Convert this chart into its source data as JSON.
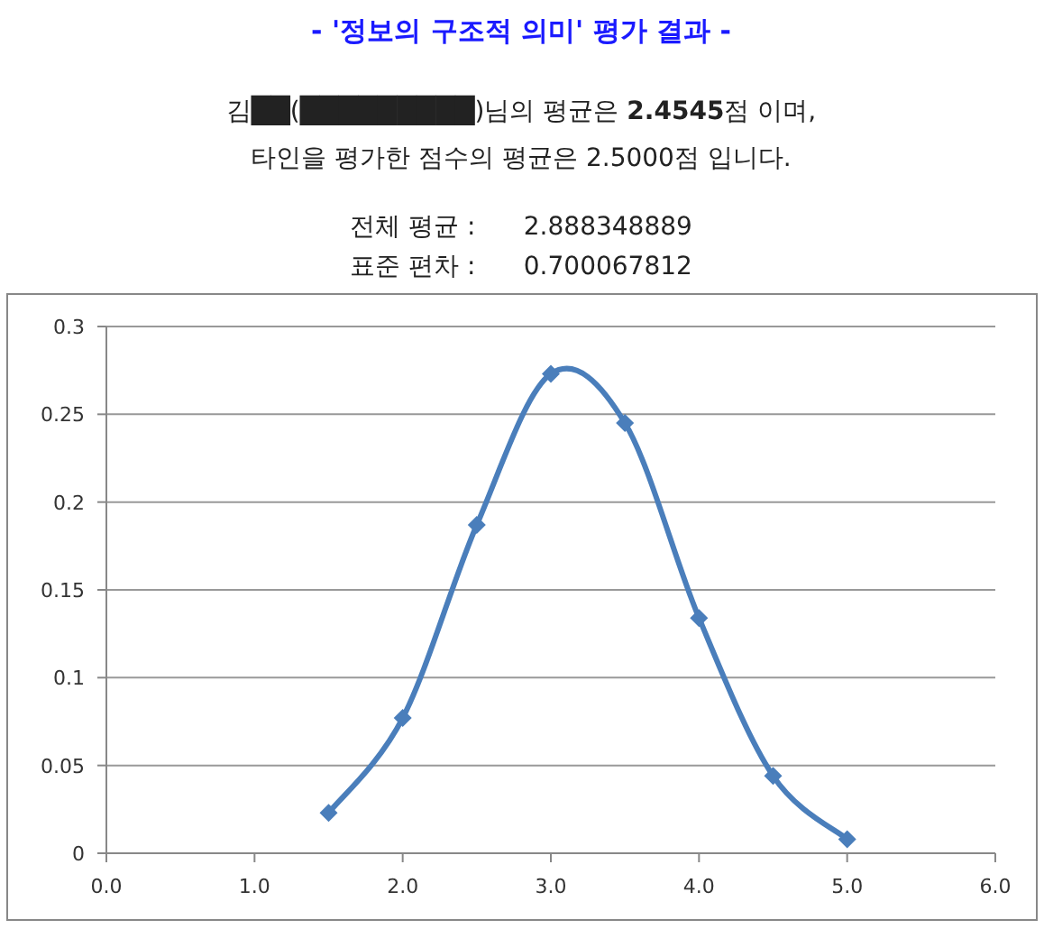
{
  "chart_data": {
    "type": "line",
    "title": "- '정보의 구조적 의미' 평가 결과 -",
    "subtitle": "김██(█████████)님의 평균은 **2.4545**점 이며,",
    "annotations": [
      "타인을 평가한 점수의 평균은 2.5000점 입니다.",
      "전체 평균 :      2.888348889",
      "표준 편차 :      0.700067812"
    ],
    "x": [
      1.5,
      2.0,
      2.5,
      3.0,
      3.5,
      4.0,
      4.5,
      5.0
    ],
    "series": [
      {
        "color": "#4a7ebb",
        "values": [
          0.023,
          0.077,
          0.187,
          0.273,
          0.245,
          0.134,
          0.044,
          0.008
        ]
      }
    ],
    "xlim": [
      0,
      6
    ],
    "xticks": [
      {
        "value": 0,
        "label": "0.0"
      },
      {
        "value": 1,
        "label": "1.0"
      },
      {
        "value": 2,
        "label": "2.0"
      },
      {
        "value": 3,
        "label": "3.0"
      },
      {
        "value": 4,
        "label": "4.0"
      },
      {
        "value": 5,
        "label": "5.0"
      },
      {
        "value": 6,
        "label": "6.0"
      }
    ],
    "ylim": [
      0,
      0.3
    ],
    "yticks": [
      0,
      0.05,
      0.1,
      0.15,
      0.2,
      0.25,
      0.3
    ],
    "grid": "y",
    "marker": "diamond",
    "line_style": "solid"
  }
}
